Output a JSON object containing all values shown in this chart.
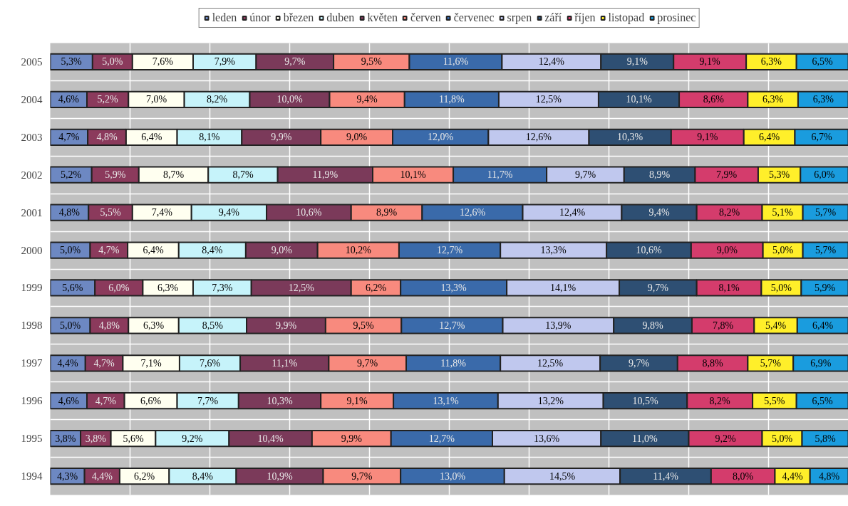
{
  "chart_data": {
    "type": "bar",
    "orientation": "horizontal",
    "stacked": true,
    "categories": [
      "2005",
      "2004",
      "2003",
      "2002",
      "2001",
      "2000",
      "1999",
      "1998",
      "1997",
      "1996",
      "1995",
      "1994"
    ],
    "xlim": [
      0,
      100
    ],
    "xticks": [
      {
        "value": 0,
        "label": null
      },
      {
        "value": 10,
        "label": null
      },
      {
        "value": 20,
        "label": null
      },
      {
        "value": 30,
        "label": null
      },
      {
        "value": 40,
        "label": null
      },
      {
        "value": 50,
        "label": null
      },
      {
        "value": 60,
        "label": null
      },
      {
        "value": 70,
        "label": null
      },
      {
        "value": 80,
        "label": null
      },
      {
        "value": 90,
        "label": null
      },
      {
        "value": 100,
        "label": null
      }
    ],
    "tick_labels": "y",
    "grid": true,
    "legend": "top",
    "series": [
      {
        "name": "leden",
        "color": "#6d88c2",
        "values": [
          5.3,
          4.6,
          4.7,
          5.2,
          4.8,
          5.0,
          5.6,
          5.0,
          4.4,
          4.6,
          3.8,
          4.3
        ],
        "value_labels": [
          "5,3%",
          "4,6%",
          "4,7%",
          "5,2%",
          "4,8%",
          "5,0%",
          "5,6%",
          "5,0%",
          "4,4%",
          "4,6%",
          "3,8%",
          "4,3%"
        ]
      },
      {
        "name": "únor",
        "color": "#8b3a5c",
        "values": [
          5.0,
          5.2,
          4.8,
          5.9,
          5.5,
          4.7,
          6.0,
          4.8,
          4.7,
          4.7,
          3.8,
          4.4
        ],
        "value_labels": [
          "5,0%",
          "5,2%",
          "4,8%",
          "5,9%",
          "5,5%",
          "4,7%",
          "6,0%",
          "4,8%",
          "4,7%",
          "4,7%",
          "3,8%",
          "4,4%"
        ]
      },
      {
        "name": "březen",
        "color": "#fffff0",
        "values": [
          7.6,
          7.0,
          6.4,
          8.7,
          7.4,
          6.4,
          6.3,
          6.3,
          7.1,
          6.6,
          5.6,
          6.2
        ],
        "value_labels": [
          "7,6%",
          "7,0%",
          "6,4%",
          "8,7%",
          "7,4%",
          "6,4%",
          "6,3%",
          "6,3%",
          "7,1%",
          "6,6%",
          "5,6%",
          "6,2%"
        ]
      },
      {
        "name": "duben",
        "color": "#c6f3fa",
        "values": [
          7.9,
          8.2,
          8.1,
          8.7,
          9.4,
          8.4,
          7.3,
          8.5,
          7.6,
          7.7,
          9.2,
          8.4
        ],
        "value_labels": [
          "7,9%",
          "8,2%",
          "8,1%",
          "8,7%",
          "9,4%",
          "8,4%",
          "7,3%",
          "8,5%",
          "7,6%",
          "7,7%",
          "9,2%",
          "8,4%"
        ]
      },
      {
        "name": "květen",
        "color": "#7b3a5a",
        "values": [
          9.7,
          10.0,
          9.9,
          11.9,
          10.6,
          9.0,
          12.5,
          9.9,
          11.1,
          10.3,
          10.4,
          10.9
        ],
        "value_labels": [
          "9,7%",
          "10,0%",
          "9,9%",
          "11,9%",
          "10,6%",
          "9,0%",
          "12,5%",
          "9,9%",
          "11,1%",
          "10,3%",
          "10,4%",
          "10,9%"
        ]
      },
      {
        "name": "červen",
        "color": "#f88a7e",
        "values": [
          9.5,
          9.4,
          9.0,
          10.1,
          8.9,
          10.2,
          6.2,
          9.5,
          9.7,
          9.1,
          9.9,
          9.7
        ],
        "value_labels": [
          "9,5%",
          "9,4%",
          "9,0%",
          "10,1%",
          "8,9%",
          "10,2%",
          "6,2%",
          "9,5%",
          "9,7%",
          "9,1%",
          "9,9%",
          "9,7%"
        ]
      },
      {
        "name": "červenec",
        "color": "#3a6aaa",
        "values": [
          11.6,
          11.8,
          12.0,
          11.7,
          12.6,
          12.7,
          13.3,
          12.7,
          11.8,
          13.1,
          12.7,
          13.0
        ],
        "value_labels": [
          "11,6%",
          "11,8%",
          "12,0%",
          "11,7%",
          "12,6%",
          "12,7%",
          "13,3%",
          "12,7%",
          "11,8%",
          "13,1%",
          "12,7%",
          "13,0%"
        ]
      },
      {
        "name": "srpen",
        "color": "#c0c8ee",
        "values": [
          12.4,
          12.5,
          12.6,
          9.7,
          12.4,
          13.3,
          14.1,
          13.9,
          12.5,
          13.2,
          13.6,
          14.5
        ],
        "value_labels": [
          "12,4%",
          "12,5%",
          "12,6%",
          "9,7%",
          "12,4%",
          "13,3%",
          "14,1%",
          "13,9%",
          "12,5%",
          "13,2%",
          "13,6%",
          "14,5%"
        ]
      },
      {
        "name": "září",
        "color": "#2e4f73",
        "values": [
          9.1,
          10.1,
          10.3,
          8.9,
          9.4,
          10.6,
          9.7,
          9.8,
          9.7,
          10.5,
          11.0,
          11.4
        ],
        "value_labels": [
          "9,1%",
          "10,1%",
          "10,3%",
          "8,9%",
          "9,4%",
          "10,6%",
          "9,7%",
          "9,8%",
          "9,7%",
          "10,5%",
          "11,0%",
          "11,4%"
        ]
      },
      {
        "name": "říjen",
        "color": "#d43c6c",
        "values": [
          9.1,
          8.6,
          9.1,
          7.9,
          8.2,
          9.0,
          8.1,
          7.8,
          8.8,
          8.2,
          9.2,
          8.0
        ],
        "value_labels": [
          "9,1%",
          "8,6%",
          "9,1%",
          "7,9%",
          "8,2%",
          "9,0%",
          "8,1%",
          "7,8%",
          "8,8%",
          "8,2%",
          "9,2%",
          "8,0%"
        ]
      },
      {
        "name": "listopad",
        "color": "#ffef2a",
        "values": [
          6.3,
          6.3,
          6.4,
          5.3,
          5.1,
          5.0,
          5.0,
          5.4,
          5.7,
          5.5,
          5.0,
          4.4
        ],
        "value_labels": [
          "6,3%",
          "6,3%",
          "6,4%",
          "5,3%",
          "5,1%",
          "5,0%",
          "5,0%",
          "5,4%",
          "5,7%",
          "5,5%",
          "5,0%",
          "4,4%"
        ]
      },
      {
        "name": "prosinec",
        "color": "#1a9cde",
        "values": [
          6.5,
          6.3,
          6.7,
          6.0,
          5.7,
          5.7,
          5.9,
          6.4,
          6.9,
          6.5,
          5.8,
          4.8
        ],
        "value_labels": [
          "6,5%",
          "6,3%",
          "6,7%",
          "6,0%",
          "5,7%",
          "5,7%",
          "5,9%",
          "6,4%",
          "6,9%",
          "6,5%",
          "5,8%",
          "4,8%"
        ]
      }
    ]
  }
}
